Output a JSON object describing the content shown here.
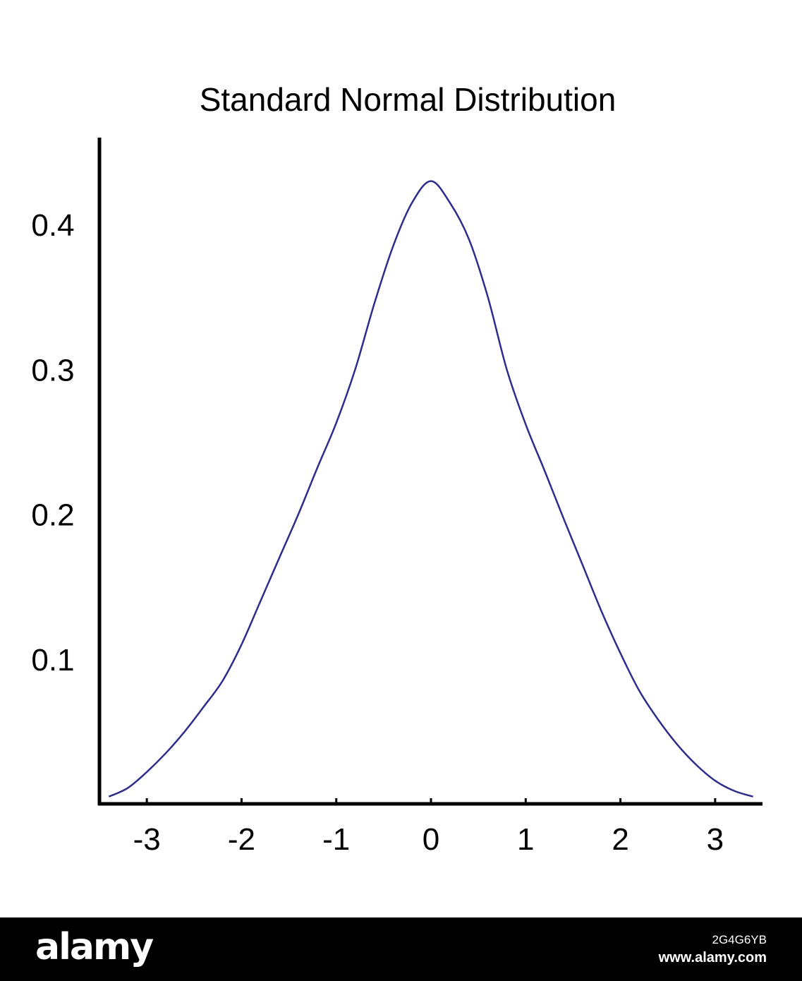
{
  "chart_data": {
    "type": "line",
    "title": "Standard Normal Distribution",
    "xlabel": "",
    "ylabel": "",
    "xlim": [
      -3.5,
      3.5
    ],
    "ylim": [
      0,
      0.46
    ],
    "x_ticks": [
      -3,
      -2,
      -1,
      0,
      1,
      2,
      3
    ],
    "x_tick_labels": [
      "-3",
      "-2",
      "-1",
      "0",
      "1",
      "2",
      "3"
    ],
    "y_ticks": [
      0.1,
      0.2,
      0.3,
      0.4
    ],
    "y_tick_labels": [
      "0.1",
      "0.2",
      "0.3",
      "0.4"
    ],
    "grid": false,
    "series": [
      {
        "x": [
          -3.4,
          -3.2,
          -3.0,
          -2.8,
          -2.6,
          -2.4,
          -2.2,
          -2.0,
          -1.8,
          -1.6,
          -1.4,
          -1.2,
          -1.0,
          -0.8,
          -0.6,
          -0.4,
          -0.2,
          0.0,
          0.2,
          0.4,
          0.6,
          0.8,
          1.0,
          1.2,
          1.4,
          1.6,
          1.8,
          2.0,
          2.2,
          2.4,
          2.6,
          2.8,
          3.0,
          3.2,
          3.4
        ],
        "y": [
          0.005,
          0.011,
          0.022,
          0.035,
          0.05,
          0.067,
          0.085,
          0.11,
          0.14,
          0.17,
          0.2,
          0.232,
          0.263,
          0.3,
          0.345,
          0.385,
          0.415,
          0.43,
          0.415,
          0.39,
          0.35,
          0.3,
          0.262,
          0.23,
          0.197,
          0.165,
          0.133,
          0.104,
          0.078,
          0.058,
          0.041,
          0.027,
          0.016,
          0.009,
          0.005
        ],
        "color": "#2e2d8c"
      }
    ]
  },
  "watermark": {
    "brand": "alamy",
    "image_id": "2G4G6YB",
    "site": "www.alamy.com"
  }
}
